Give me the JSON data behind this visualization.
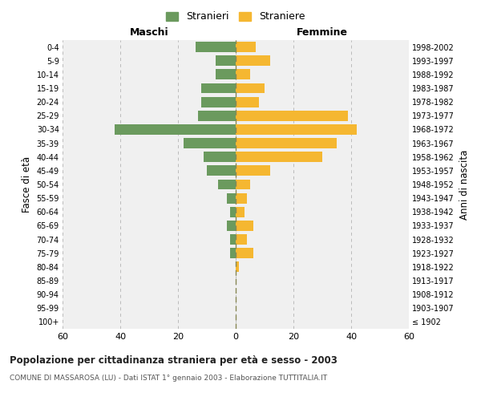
{
  "age_groups": [
    "100+",
    "95-99",
    "90-94",
    "85-89",
    "80-84",
    "75-79",
    "70-74",
    "65-69",
    "60-64",
    "55-59",
    "50-54",
    "45-49",
    "40-44",
    "35-39",
    "30-34",
    "25-29",
    "20-24",
    "15-19",
    "10-14",
    "5-9",
    "0-4"
  ],
  "birth_years": [
    "≤ 1902",
    "1903-1907",
    "1908-1912",
    "1913-1917",
    "1918-1922",
    "1923-1927",
    "1928-1932",
    "1933-1937",
    "1938-1942",
    "1943-1947",
    "1948-1952",
    "1953-1957",
    "1958-1962",
    "1963-1967",
    "1968-1972",
    "1973-1977",
    "1978-1982",
    "1983-1987",
    "1988-1992",
    "1993-1997",
    "1998-2002"
  ],
  "maschi": [
    0,
    0,
    0,
    0,
    0,
    2,
    2,
    3,
    2,
    3,
    6,
    10,
    11,
    18,
    42,
    13,
    12,
    12,
    7,
    7,
    14
  ],
  "femmine": [
    0,
    0,
    0,
    0,
    1,
    6,
    4,
    6,
    3,
    4,
    5,
    12,
    30,
    35,
    42,
    39,
    8,
    10,
    5,
    12,
    7
  ],
  "color_maschi": "#6b9a5e",
  "color_femmine": "#f5b731",
  "title": "Popolazione per cittadinanza straniera per età e sesso - 2003",
  "subtitle": "COMUNE DI MASSAROSA (LU) - Dati ISTAT 1° gennaio 2003 - Elaborazione TUTTITALIA.IT",
  "xlabel_left": "Maschi",
  "xlabel_right": "Femmine",
  "ylabel_left": "Fasce di età",
  "ylabel_right": "Anni di nascita",
  "legend_stranieri": "Stranieri",
  "legend_straniere": "Straniere",
  "xlim": 60,
  "bg_color": "#f0f0f0",
  "grid_color": "#cccccc"
}
